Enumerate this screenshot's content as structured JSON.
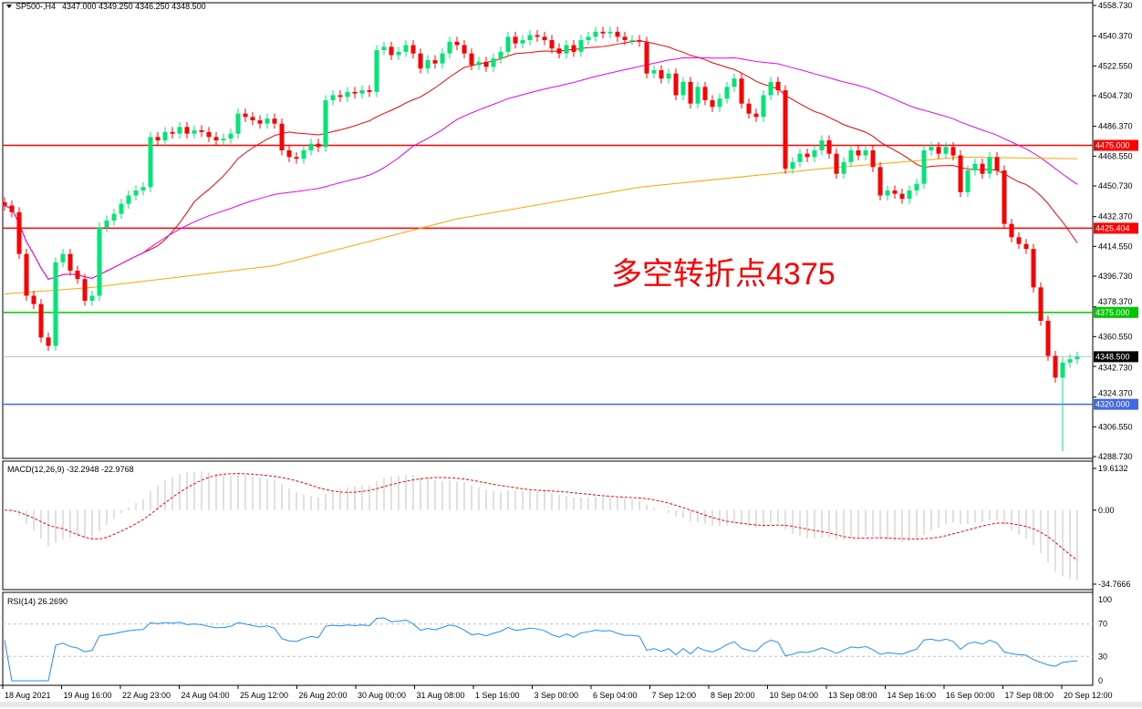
{
  "header": {
    "symbol_label": "SP500-,H4",
    "ohlc_label": "4347.000 4349.250 4346.250 4348.500",
    "menu_icon": "triangle-down-icon"
  },
  "annotation": {
    "text": "多空转折点4375",
    "color": "#ff0000"
  },
  "price_axis": {
    "ticks": [
      "4558.730",
      "4540.370",
      "4522.550",
      "4504.730",
      "4486.370",
      "4468.550",
      "4450.730",
      "4432.370",
      "4414.550",
      "4396.730",
      "4378.370",
      "4360.550",
      "4342.730",
      "4324.370",
      "4306.550",
      "4288.730"
    ],
    "range": [
      4288.73,
      4558.73
    ]
  },
  "levels": [
    {
      "label": "4475.000",
      "value": 4475.0,
      "color": "#ff0000"
    },
    {
      "label": "4425.404",
      "value": 4425.404,
      "color": "#ff0000"
    },
    {
      "label": "4375.000",
      "value": 4375.0,
      "color": "#00c800"
    },
    {
      "label": "4320.000",
      "value": 4320.0,
      "color": "#4169e1"
    },
    {
      "label": "4348.500",
      "value": 4348.5,
      "color": "#000000",
      "line_color": "#c0c0c0"
    }
  ],
  "time_axis": [
    "18 Aug 2021",
    "19 Aug 16:00",
    "22 Aug 23:00",
    "24 Aug 04:00",
    "25 Aug 12:00",
    "26 Aug 20:00",
    "30 Aug 00:00",
    "31 Aug 08:00",
    "1 Sep 16:00",
    "3 Sep 00:00",
    "6 Sep 04:00",
    "7 Sep 12:00",
    "8 Sep 20:00",
    "10 Sep 04:00",
    "13 Sep 08:00",
    "14 Sep 16:00",
    "16 Sep 00:00",
    "17 Sep 08:00",
    "20 Sep 12:00"
  ],
  "macd": {
    "label": "MACD(12,26,9) -32.2948 -22.9768",
    "ticks": [
      "19.6132",
      "0.00",
      "-34.7666"
    ],
    "range": [
      -34.7666,
      19.6132
    ],
    "signal_color": "#ff0000",
    "hist_color": "#c0c0c0"
  },
  "rsi": {
    "label": "RSI(14) 26.2690",
    "ticks": [
      "100",
      "70",
      "30",
      "0"
    ],
    "color": "#1e90ff"
  },
  "chart_data": {
    "type": "candlestick",
    "up_color": "#00e676",
    "down_color": "#ff0000",
    "close": [
      4439,
      4435,
      4410,
      4385,
      4380,
      4360,
      4355,
      4405,
      4410,
      4400,
      4395,
      4382,
      4385,
      4426,
      4430,
      4434,
      4440,
      4445,
      4448,
      4450,
      4480,
      4478,
      4483,
      4482,
      4486,
      4482,
      4484,
      4483,
      4480,
      4478,
      4479,
      4482,
      4494,
      4492,
      4490,
      4488,
      4491,
      4488,
      4472,
      4468,
      4467,
      4472,
      4476,
      4474,
      4502,
      4505,
      4504,
      4507,
      4506,
      4508,
      4507,
      4532,
      4534,
      4529,
      4531,
      4535,
      4530,
      4521,
      4526,
      4524,
      4530,
      4537,
      4535,
      4530,
      4523,
      4525,
      4522,
      4527,
      4531,
      4540,
      4536,
      4538,
      4541,
      4540,
      4538,
      4533,
      4530,
      4535,
      4531,
      4538,
      4540,
      4543,
      4542,
      4543,
      4540,
      4538,
      4538,
      4537,
      4518,
      4520,
      4515,
      4518,
      4505,
      4513,
      4500,
      4510,
      4502,
      4498,
      4503,
      4510,
      4515,
      4500,
      4494,
      4492,
      4505,
      4513,
      4508,
      4461,
      4465,
      4470,
      4468,
      4472,
      4478,
      4470,
      4458,
      4465,
      4472,
      4469,
      4472,
      4462,
      4445,
      4448,
      4446,
      4443,
      4448,
      4452,
      4472,
      4474,
      4470,
      4474,
      4469,
      4447,
      4460,
      4464,
      4458,
      4468,
      4460,
      4428,
      4420,
      4416,
      4413,
      4390,
      4370,
      4349,
      4336,
      4345,
      4347,
      4348.5
    ],
    "extremes": [
      {
        "index": 145,
        "low": 4292
      }
    ],
    "ma_colors": {
      "ma20": "#ff0000",
      "ma50": "#ee00ee",
      "ma200": "#ffa500"
    },
    "ma200_points": [
      [
        0,
        4386
      ],
      [
        12,
        4390
      ],
      [
        37,
        4403
      ],
      [
        62,
        4431
      ],
      [
        87,
        4450
      ],
      [
        112,
        4461
      ],
      [
        131,
        4468
      ],
      [
        147,
        4467
      ]
    ]
  }
}
